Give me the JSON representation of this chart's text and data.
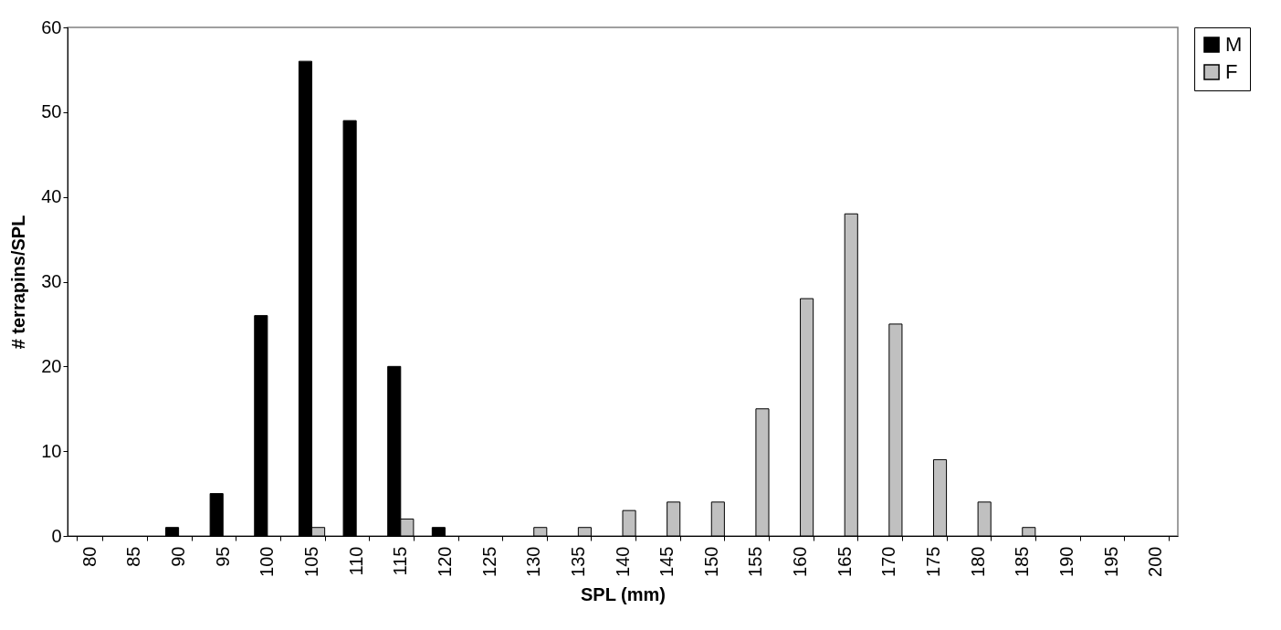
{
  "chart_data": {
    "type": "bar",
    "xlabel": "SPL (mm)",
    "ylabel": "# terrapins/SPL",
    "categories": [
      "80",
      "85",
      "90",
      "95",
      "100",
      "105",
      "110",
      "115",
      "120",
      "125",
      "130",
      "135",
      "140",
      "145",
      "150",
      "155",
      "160",
      "165",
      "170",
      "175",
      "180",
      "185",
      "190",
      "195",
      "200"
    ],
    "series": [
      {
        "name": "M",
        "color": "#000000",
        "values": [
          0,
          0,
          1,
          5,
          26,
          56,
          49,
          20,
          1,
          0,
          0,
          0,
          0,
          0,
          0,
          0,
          0,
          0,
          0,
          0,
          0,
          0,
          0,
          0,
          0
        ]
      },
      {
        "name": "F",
        "color": "#c0c0c0",
        "values": [
          0,
          0,
          0,
          0,
          0,
          1,
          0,
          2,
          0,
          0,
          1,
          1,
          3,
          4,
          4,
          15,
          28,
          38,
          25,
          9,
          4,
          1,
          0,
          0,
          0
        ]
      }
    ],
    "ylim": [
      0,
      60
    ],
    "yticks": [
      0,
      10,
      20,
      30,
      40,
      50,
      60
    ],
    "grid": false,
    "legend": "right"
  }
}
